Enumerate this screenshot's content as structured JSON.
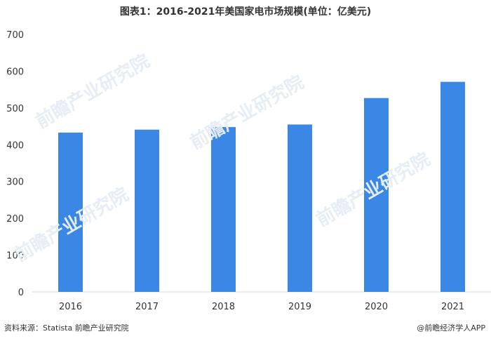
{
  "chart_data": {
    "type": "bar",
    "title": "图表1：2016-2021年美国家电市场规模(单位：亿美元)",
    "categories": [
      "2016",
      "2017",
      "2018",
      "2019",
      "2020",
      "2021"
    ],
    "values": [
      433,
      441,
      448,
      455,
      527,
      571
    ],
    "ylim": [
      0,
      700
    ],
    "yticks": [
      0,
      100,
      200,
      300,
      400,
      500,
      600,
      700
    ],
    "bar_color": "#3a87e6",
    "grid": false,
    "legend": "none"
  },
  "footer": {
    "source": "资料来源：Statista 前瞻产业研究院",
    "brand": "@前瞻经济学人APP"
  },
  "watermark": "前瞻产业研究院"
}
